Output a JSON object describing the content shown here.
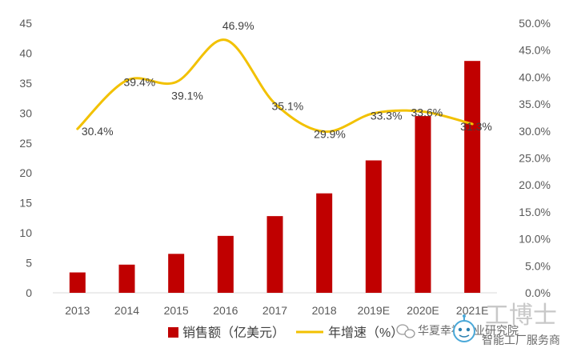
{
  "chart_data": {
    "type": "bar+line",
    "categories": [
      "2013",
      "2014",
      "2015",
      "2016",
      "2017",
      "2018",
      "2019E",
      "2020E",
      "2021E"
    ],
    "series": [
      {
        "name": "销售额（亿美元）",
        "type": "bar",
        "axis": "left",
        "color": "#c00000",
        "values": [
          3.4,
          4.7,
          6.5,
          9.5,
          12.8,
          16.6,
          22.1,
          29.5,
          38.7
        ]
      },
      {
        "name": "年增速（%）",
        "type": "line",
        "axis": "right",
        "color": "#f2c100",
        "values": [
          30.4,
          39.4,
          39.1,
          46.9,
          35.1,
          29.9,
          33.3,
          33.6,
          31.3
        ],
        "labels": [
          "30.4%",
          "39.4%",
          "39.1%",
          "46.9%",
          "35.1%",
          "29.9%",
          "33.3%",
          "33.6%",
          "31.3%"
        ]
      }
    ],
    "y_left": {
      "ylim": [
        0,
        45
      ],
      "ticks": [
        "0",
        "5",
        "10",
        "15",
        "20",
        "25",
        "30",
        "35",
        "40",
        "45"
      ]
    },
    "y_right": {
      "ylim": [
        0,
        50
      ],
      "ticks": [
        "0.0%",
        "5.0%",
        "10.0%",
        "15.0%",
        "20.0%",
        "25.0%",
        "30.0%",
        "35.0%",
        "40.0%",
        "45.0%",
        "50.0%"
      ]
    },
    "legend": {
      "position": "bottom",
      "items": [
        "销售额（亿美元）",
        "年增速（%）"
      ]
    },
    "title": "",
    "xlabel": "",
    "ylabel": ""
  },
  "watermark": {
    "channel": "华夏幸福产业研究院",
    "brand": "工博士",
    "tagline": "智能工厂服务商",
    "icon": "wechat-icon"
  }
}
